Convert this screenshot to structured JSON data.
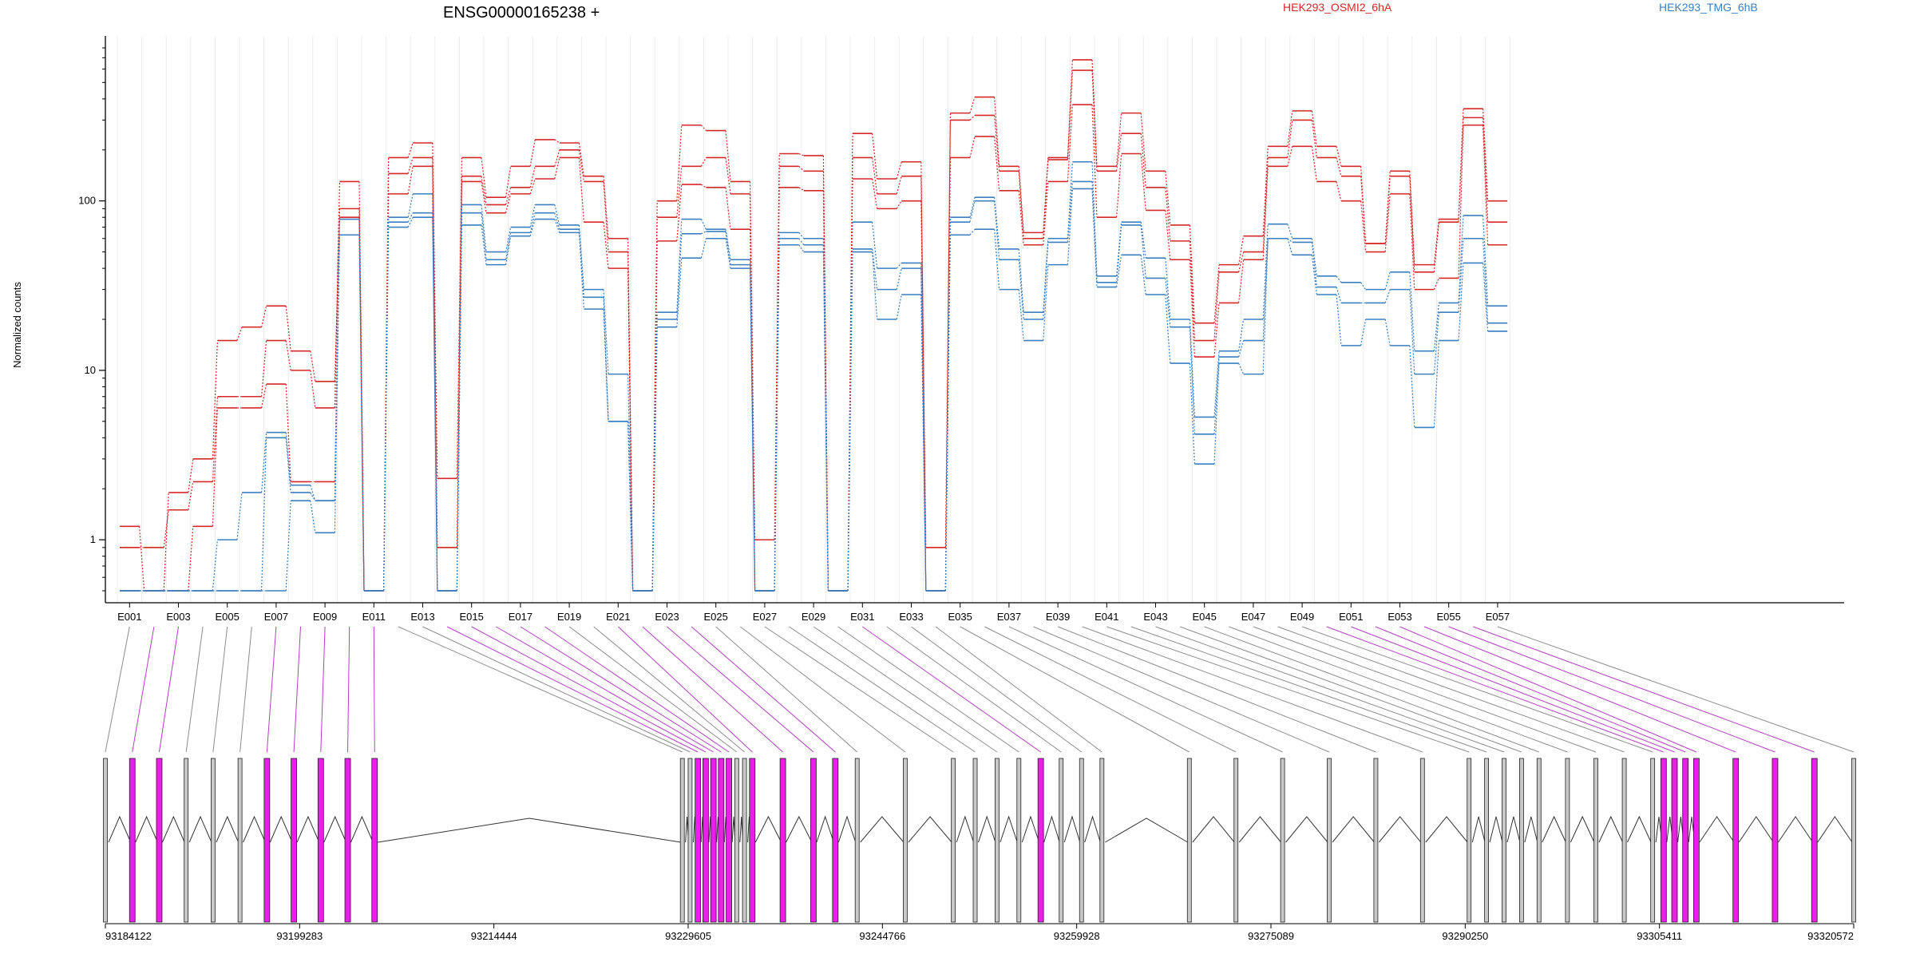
{
  "chart_data": {
    "type": "line",
    "title": "ENSG00000165238 +",
    "ylabel": "Normalized counts",
    "xlabel": "",
    "yscale": "log",
    "ylim": [
      0.5,
      800
    ],
    "y_ticks": [
      {
        "value": 1,
        "label": "1"
      },
      {
        "value": 10,
        "label": "10"
      },
      {
        "value": 100,
        "label": "100"
      }
    ],
    "x_tick_labels": [
      "E001",
      "E003",
      "E005",
      "E007",
      "E009",
      "E011",
      "E013",
      "E015",
      "E017",
      "E019",
      "E021",
      "E023",
      "E025",
      "E027",
      "E029",
      "E031",
      "E033",
      "E035",
      "E037",
      "E039",
      "E041",
      "E043",
      "E045",
      "E047",
      "E049",
      "E051",
      "E053",
      "E055",
      "E057"
    ],
    "legend": [
      {
        "name": "HEK293_OSMI2_6hA",
        "color": "#d62728",
        "placement": "top"
      },
      {
        "name": "HEK293_TMG_6hB",
        "color": "#3a7fc1",
        "placement": "top"
      }
    ],
    "exons": [
      "E001",
      "E002",
      "E003",
      "E004",
      "E005",
      "E006",
      "E007",
      "E008",
      "E009",
      "E010",
      "E011",
      "E012",
      "E013",
      "E014",
      "E015",
      "E016",
      "E017",
      "E018",
      "E019",
      "E020",
      "E021",
      "E022",
      "E023",
      "E024",
      "E025",
      "E026",
      "E027",
      "E028",
      "E029",
      "E030",
      "E031",
      "E032",
      "E033",
      "E034",
      "E035",
      "E036",
      "E037",
      "E038",
      "E039",
      "E040",
      "E041",
      "E042",
      "E043",
      "E044",
      "E045",
      "E046",
      "E047",
      "E048",
      "E049",
      "E050",
      "E051",
      "E052",
      "E053",
      "E054",
      "E055",
      "E056",
      "E057"
    ],
    "series": [
      {
        "group": "HEK293_OSMI2_6hA",
        "color": "#d62728",
        "values": [
          1.2,
          0.5,
          1.9,
          3.0,
          15,
          18,
          24,
          13,
          8.6,
          80,
          0.5,
          180,
          220,
          2.3,
          180,
          105,
          160,
          230,
          220,
          140,
          60,
          0.5,
          100,
          280,
          260,
          130,
          1.0,
          190,
          185,
          0.5,
          250,
          135,
          170,
          0.5,
          330,
          410,
          160,
          65,
          180,
          680,
          160,
          330,
          150,
          72,
          19,
          42,
          62,
          210,
          340,
          210,
          160,
          56,
          150,
          42,
          78,
          350,
          100
        ]
      },
      {
        "group": "HEK293_OSMI2_6hA",
        "color": "#d62728",
        "values": [
          0.9,
          0.9,
          1.5,
          2.2,
          7,
          7,
          15,
          10,
          6,
          130,
          0.5,
          145,
          180,
          0.9,
          140,
          95,
          120,
          160,
          200,
          130,
          50,
          0.5,
          80,
          160,
          180,
          110,
          0.5,
          160,
          150,
          0.5,
          180,
          110,
          140,
          0.9,
          300,
          320,
          150,
          60,
          175,
          590,
          150,
          250,
          120,
          58,
          15,
          38,
          50,
          180,
          300,
          180,
          140,
          56,
          140,
          38,
          75,
          310,
          75
        ]
      },
      {
        "group": "HEK293_OSMI2_6hA",
        "color": "#d62728",
        "values": [
          0.5,
          0.5,
          0.5,
          1.2,
          6,
          6,
          8.3,
          2.2,
          2.2,
          90,
          0.5,
          110,
          160,
          0.5,
          130,
          85,
          110,
          135,
          180,
          75,
          40,
          0.5,
          58,
          125,
          120,
          68,
          0.5,
          120,
          115,
          0.5,
          135,
          90,
          100,
          0.5,
          180,
          240,
          115,
          55,
          130,
          370,
          80,
          190,
          88,
          45,
          12,
          25,
          45,
          160,
          210,
          130,
          100,
          50,
          110,
          30,
          35,
          280,
          55
        ]
      },
      {
        "group": "HEK293_TMG_6hB",
        "color": "#3a7fc1",
        "values": [
          0.5,
          0.5,
          0.5,
          0.5,
          1.0,
          1.9,
          4.3,
          2.1,
          1.7,
          78,
          0.5,
          80,
          110,
          0.5,
          95,
          50,
          70,
          95,
          72,
          30,
          9.5,
          0.5,
          22,
          78,
          68,
          45,
          0.5,
          65,
          60,
          0.5,
          75,
          40,
          43,
          0.5,
          80,
          105,
          52,
          22,
          60,
          170,
          36,
          75,
          46,
          20,
          5.3,
          13,
          20,
          73,
          60,
          36,
          33,
          30,
          38,
          13,
          25,
          82,
          24
        ]
      },
      {
        "group": "HEK293_TMG_6hB",
        "color": "#3a7fc1",
        "values": [
          0.5,
          0.5,
          0.5,
          0.5,
          0.5,
          0.5,
          4.0,
          1.9,
          1.7,
          63,
          0.5,
          75,
          85,
          0.5,
          85,
          45,
          65,
          85,
          68,
          27,
          5.0,
          0.5,
          20,
          64,
          66,
          42,
          0.5,
          60,
          55,
          0.5,
          52,
          30,
          40,
          0.5,
          75,
          100,
          45,
          20,
          57,
          130,
          33,
          72,
          35,
          18,
          4.2,
          12,
          15,
          60,
          57,
          31,
          25,
          25,
          30,
          9.5,
          22,
          60,
          19
        ]
      },
      {
        "group": "HEK293_TMG_6hB",
        "color": "#3a7fc1",
        "values": [
          0.5,
          0.5,
          0.5,
          0.5,
          0.5,
          0.5,
          0.5,
          1.7,
          1.1,
          63,
          0.5,
          70,
          80,
          0.5,
          72,
          42,
          62,
          78,
          65,
          23,
          5.0,
          0.5,
          18,
          46,
          60,
          40,
          0.5,
          55,
          50,
          0.5,
          50,
          20,
          28,
          0.5,
          63,
          68,
          30,
          15,
          42,
          118,
          31,
          48,
          28,
          11,
          2.8,
          11,
          9.5,
          60,
          48,
          28,
          14,
          20,
          14,
          4.6,
          15,
          43,
          17
        ]
      }
    ]
  },
  "gene_model": {
    "coordinate_labels": [
      "93184122",
      "93199283",
      "93214444",
      "93229605",
      "93244766",
      "93259928",
      "93275089",
      "93290250",
      "93305411",
      "93320572"
    ],
    "colors": {
      "exon_default": "#c8c8c8",
      "exon_highlight": "#e91ee8",
      "connector_default": "#8c8c8c",
      "connector_highlight": "#b040c0"
    }
  }
}
